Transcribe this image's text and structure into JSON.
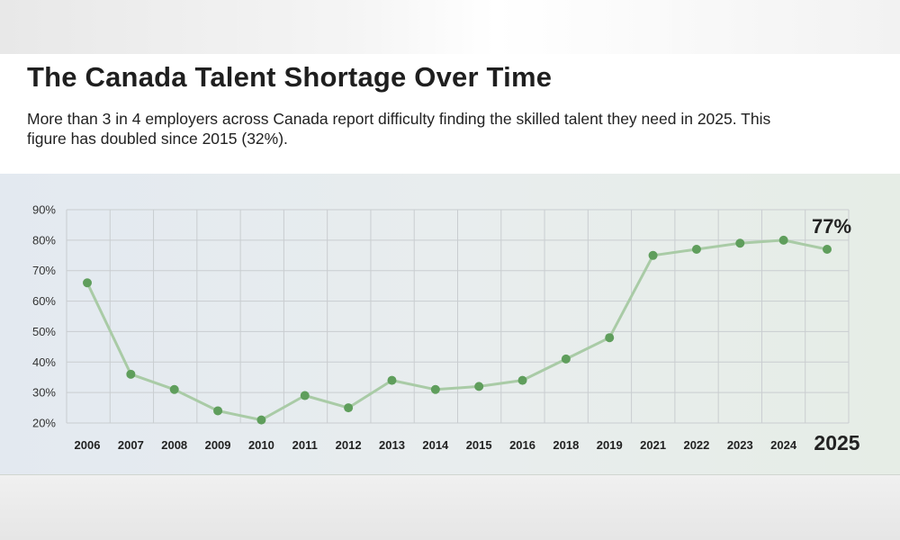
{
  "header": {
    "title": "The Canada Talent Shortage Over Time",
    "subtitle": "More than 3 in 4 employers across Canada report difficulty finding the skilled talent they need in 2025. This figure has doubled since 2015 (32%)."
  },
  "chart_data": {
    "type": "line",
    "categories": [
      "2006",
      "2007",
      "2008",
      "2009",
      "2010",
      "2011",
      "2012",
      "2013",
      "2014",
      "2015",
      "2016",
      "2018",
      "2019",
      "2021",
      "2022",
      "2023",
      "2024",
      "2025"
    ],
    "values": [
      66,
      36,
      31,
      24,
      21,
      29,
      25,
      34,
      31,
      32,
      34,
      41,
      48,
      75,
      77,
      79,
      80,
      77
    ],
    "y_ticks": [
      "20%",
      "30%",
      "40%",
      "50%",
      "60%",
      "70%",
      "80%",
      "90%"
    ],
    "ylim": [
      20,
      90
    ],
    "grid": true,
    "callout": {
      "text": "77%",
      "category": "2025"
    },
    "colors": {
      "line": "#a9cba6",
      "marker": "#5f9e5c",
      "grid": "#c9cdd0"
    }
  }
}
